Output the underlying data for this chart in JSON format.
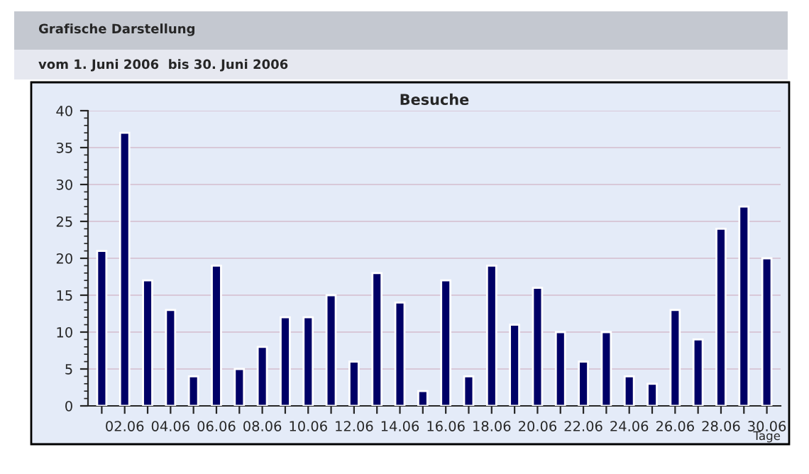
{
  "chart_data": {
    "type": "bar",
    "title": "Besuche",
    "xlabel": "Tage",
    "annotations": [
      "Grafische Darstellung",
      "vom 1. Juni 2006  bis 30. Juni 2006"
    ],
    "categories": [
      null,
      "02.06",
      null,
      "04.06",
      null,
      "06.06",
      null,
      "08.06",
      null,
      "10.06",
      null,
      "12.06",
      null,
      "14.06",
      null,
      "16.06",
      null,
      "18.06",
      null,
      "20.06",
      null,
      "22.06",
      null,
      "24.06",
      null,
      "26.06",
      null,
      "28.06",
      null,
      "30.06"
    ],
    "values": [
      21,
      37,
      17,
      13,
      4,
      19,
      5,
      8,
      12,
      12,
      15,
      6,
      18,
      14,
      2,
      17,
      4,
      19,
      11,
      16,
      10,
      6,
      10,
      4,
      3,
      13,
      9,
      24,
      27,
      20
    ],
    "color": "#000066",
    "ylim": [
      0,
      40
    ],
    "yticks": [
      0,
      5,
      10,
      15,
      20,
      25,
      30,
      35,
      40
    ],
    "grid": "y"
  }
}
